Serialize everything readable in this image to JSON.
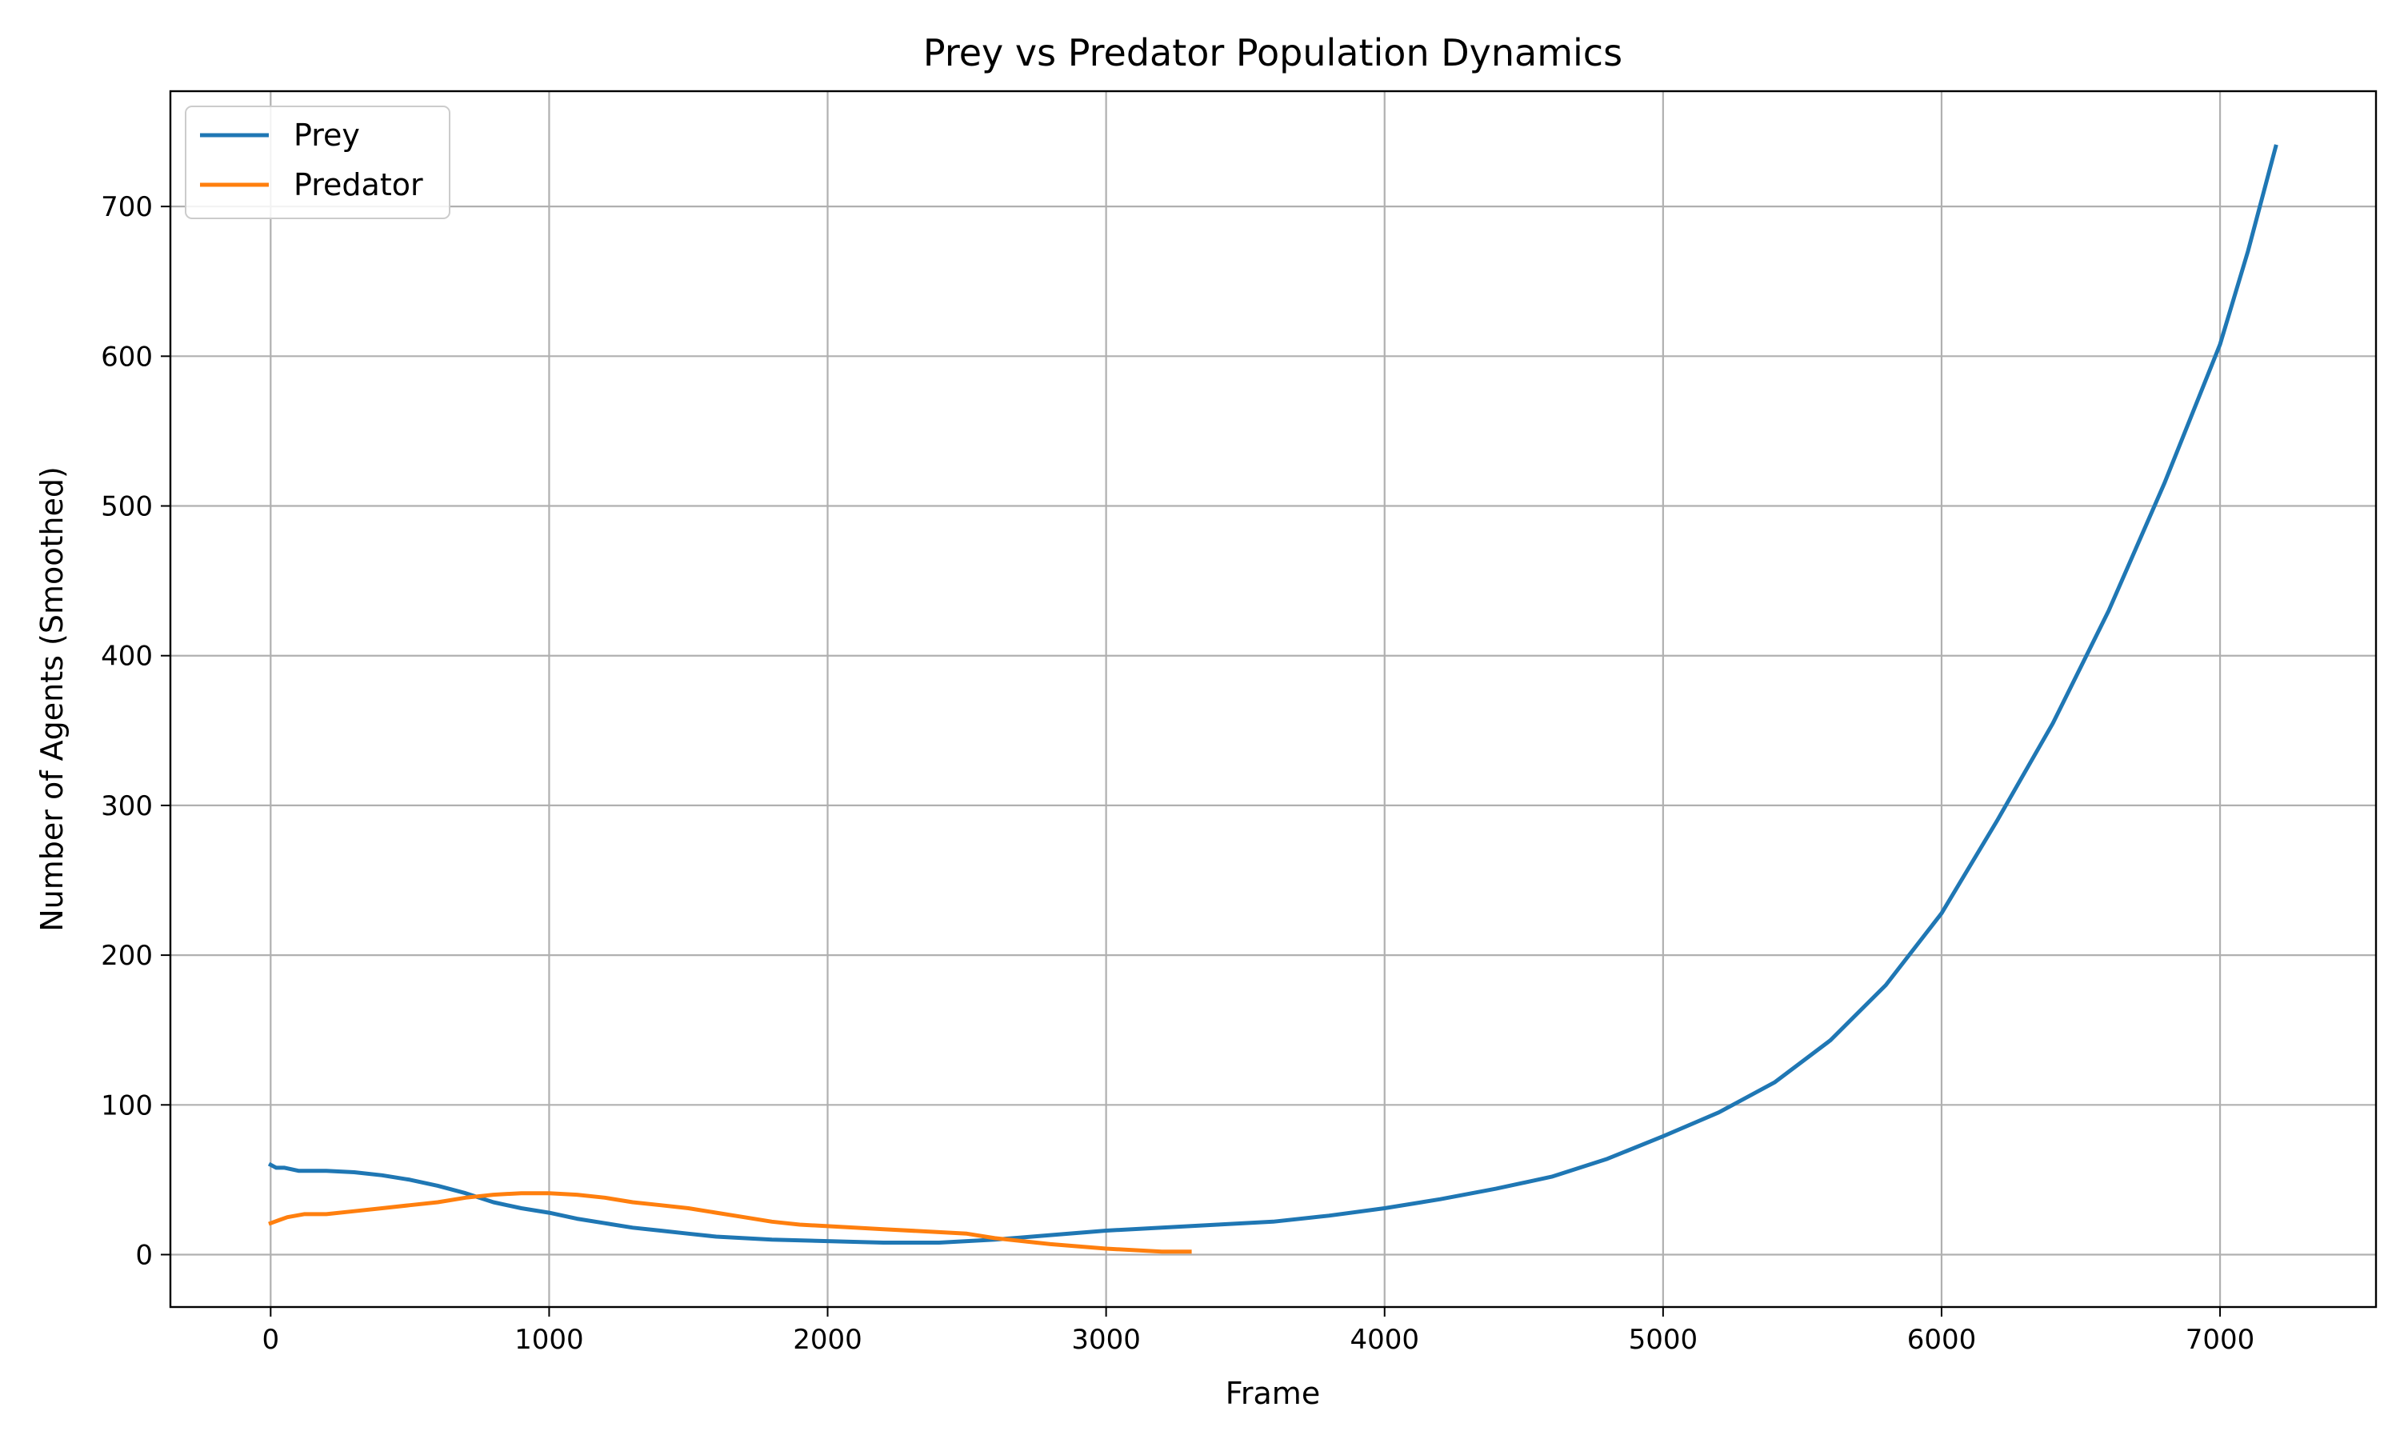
{
  "chart_data": {
    "type": "line",
    "title": "Prey vs Predator Population Dynamics",
    "xlabel": "Frame",
    "ylabel": "Number of Agents (Smoothed)",
    "xlim": [
      -360,
      7560
    ],
    "ylim": [
      -35,
      777
    ],
    "xticks": [
      0,
      1000,
      2000,
      3000,
      4000,
      5000,
      6000,
      7000
    ],
    "yticks": [
      0,
      100,
      200,
      300,
      400,
      500,
      600,
      700
    ],
    "grid": true,
    "legend_position": "top-left",
    "colors": {
      "Prey": "#1f77b4",
      "Predator": "#ff7f0e"
    },
    "series": [
      {
        "name": "Prey",
        "x": [
          0,
          20,
          50,
          100,
          200,
          300,
          400,
          500,
          600,
          700,
          800,
          900,
          1000,
          1100,
          1200,
          1300,
          1400,
          1500,
          1600,
          1700,
          1800,
          2000,
          2200,
          2400,
          2600,
          2800,
          3000,
          3200,
          3400,
          3600,
          3800,
          4000,
          4200,
          4400,
          4600,
          4800,
          5000,
          5200,
          5400,
          5600,
          5800,
          6000,
          6200,
          6400,
          6600,
          6800,
          7000,
          7100,
          7200
        ],
        "y": [
          60,
          58,
          58,
          56,
          56,
          55,
          53,
          50,
          46,
          41,
          35,
          31,
          28,
          24,
          21,
          18,
          16,
          14,
          12,
          11,
          10,
          9,
          8,
          8,
          10,
          13,
          16,
          18,
          20,
          22,
          26,
          31,
          37,
          44,
          52,
          64,
          79,
          95,
          115,
          143,
          180,
          228,
          290,
          355,
          430,
          515,
          608,
          670,
          740
        ]
      },
      {
        "name": "Predator",
        "x": [
          0,
          30,
          60,
          120,
          200,
          300,
          400,
          500,
          600,
          700,
          800,
          900,
          1000,
          1100,
          1200,
          1300,
          1400,
          1500,
          1600,
          1700,
          1800,
          1900,
          2000,
          2200,
          2400,
          2500,
          2600,
          2700,
          2800,
          3000,
          3200,
          3300
        ],
        "y": [
          21,
          23,
          25,
          27,
          27,
          29,
          31,
          33,
          35,
          38,
          40,
          41,
          41,
          40,
          38,
          35,
          33,
          31,
          28,
          25,
          22,
          20,
          19,
          17,
          15,
          14,
          11,
          9,
          7,
          4,
          2,
          2
        ]
      }
    ]
  }
}
